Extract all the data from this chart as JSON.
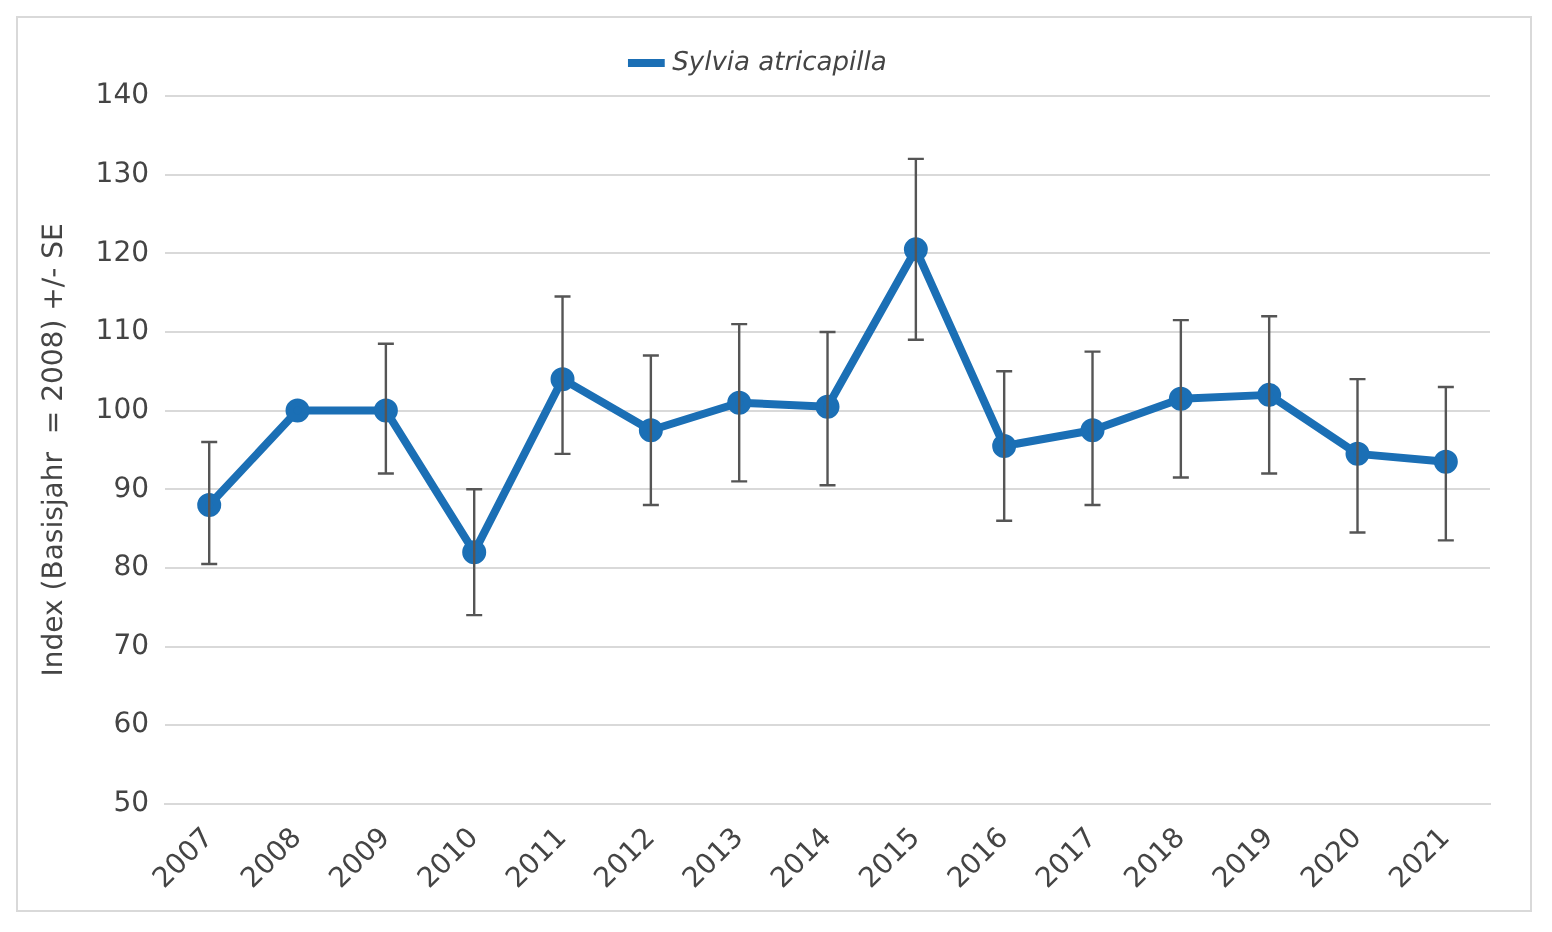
{
  "chart_data": {
    "type": "line",
    "ylabel": "Index (Basisjahr  = 2008) +/- SE",
    "categories": [
      "2007",
      "2008",
      "2009",
      "2010",
      "2011",
      "2012",
      "2013",
      "2014",
      "2015",
      "2016",
      "2017",
      "2018",
      "2019",
      "2020",
      "2021"
    ],
    "series": [
      {
        "name": "Sylvia atricapilla",
        "color": "#1b6fb5",
        "values": [
          88,
          100,
          100,
          82,
          104,
          97.5,
          101,
          100.5,
          120.5,
          95.5,
          97.5,
          101.5,
          102,
          94.5,
          93.5
        ],
        "errors": [
          [
            80.5,
            96
          ],
          null,
          [
            92,
            108.5
          ],
          [
            74,
            90
          ],
          [
            94.5,
            114.5
          ],
          [
            88,
            107
          ],
          [
            91,
            111
          ],
          [
            90.5,
            110
          ],
          [
            109,
            132
          ],
          [
            86,
            105
          ],
          [
            88,
            107.5
          ],
          [
            91.5,
            111.5
          ],
          [
            92,
            112
          ],
          [
            84.5,
            104
          ],
          [
            83.5,
            103
          ]
        ]
      }
    ],
    "ylim": [
      50,
      140
    ],
    "yticks": [
      50,
      60,
      70,
      80,
      90,
      100,
      110,
      120,
      130,
      140
    ],
    "grid": "y",
    "legend": "top",
    "marker": "circle",
    "line_style": "solid"
  }
}
